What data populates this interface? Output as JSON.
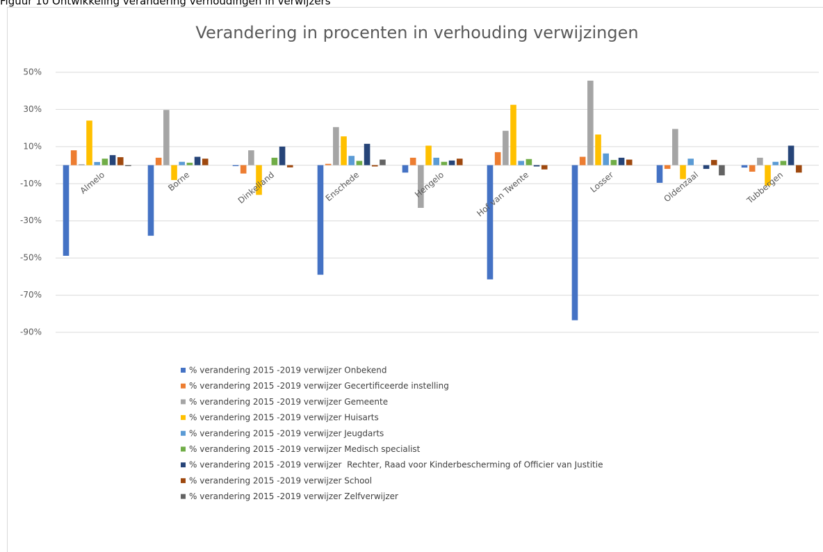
{
  "figure_caption": "Figuur 10 Ontwikkeling verandering verhoudingen in verwijzers",
  "chart_data": {
    "type": "bar",
    "title": "Verandering in procenten in verhouding verwijzingen",
    "categories": [
      "Almelo",
      "Borne",
      "Dinkelland",
      "Enschede",
      "Hengelo",
      "Hof van Twente",
      "Losser",
      "Oldenzaal",
      "Tubbergen"
    ],
    "series": [
      {
        "name": "% verandering 2015 -2019 verwijzer Onbekend",
        "color": "#4472c4",
        "values": [
          -48.8,
          -38,
          -0.5,
          -59,
          -4,
          -61.5,
          -83.5,
          -9.5,
          -1.3
        ]
      },
      {
        "name": "% verandering 2015 -2019 verwijzer Gecertificeerde instelling",
        "color": "#ed7d31",
        "values": [
          8,
          4,
          -4.5,
          0.7,
          4,
          7,
          4.5,
          -2,
          -3.5
        ]
      },
      {
        "name": "% verandering 2015 -2019 verwijzer Gemeente",
        "color": "#a5a5a5",
        "values": [
          0.5,
          29.7,
          8,
          20.5,
          -23,
          18.5,
          45.5,
          19.5,
          4
        ]
      },
      {
        "name": "% verandering 2015 -2019 verwijzer Huisarts",
        "color": "#ffc000",
        "values": [
          24,
          -8,
          -16,
          15.5,
          10.5,
          32.5,
          16.5,
          -7.5,
          -11
        ]
      },
      {
        "name": "% verandering 2015 -2019 verwijzer Jeugdarts",
        "color": "#5b9bd5",
        "values": [
          1.7,
          1.8,
          0,
          5,
          4,
          2.3,
          6.3,
          3.5,
          1.8
        ]
      },
      {
        "name": "% verandering 2015 -2019 verwijzer Medisch specialist",
        "color": "#70ad47",
        "values": [
          3.5,
          1.3,
          4,
          2.3,
          1.8,
          3.3,
          2.8,
          0,
          2.3
        ]
      },
      {
        "name": "% verandering 2015 -2019 verwijzer  Rechter, Raad voor Kinderbescherming of Officier van Justitie",
        "color": "#264478",
        "values": [
          5.4,
          4.5,
          10,
          11.5,
          2.5,
          -0.7,
          4,
          -2,
          10.5
        ]
      },
      {
        "name": "% verandering 2015 -2019 verwijzer School",
        "color": "#9e480e",
        "values": [
          4.3,
          3.5,
          -1.2,
          -0.7,
          3.5,
          -2.3,
          3,
          2.8,
          -4
        ]
      },
      {
        "name": "% verandering 2015 -2019 verwijzer Zelfverwijzer",
        "color": "#636363",
        "values": [
          -0.5,
          0,
          0,
          3,
          0,
          0,
          0,
          -5.5,
          0
        ]
      }
    ],
    "ylim": [
      -90,
      50
    ],
    "yticks": [
      {
        "value": 50,
        "label": "50%"
      },
      {
        "value": 30,
        "label": "30%"
      },
      {
        "value": 10,
        "label": "10%"
      },
      {
        "value": -10,
        "label": "-10%"
      },
      {
        "value": -30,
        "label": "-30%"
      },
      {
        "value": -50,
        "label": "-50%"
      },
      {
        "value": -70,
        "label": "-70%"
      },
      {
        "value": -90,
        "label": "-90%"
      }
    ],
    "grid": true
  }
}
